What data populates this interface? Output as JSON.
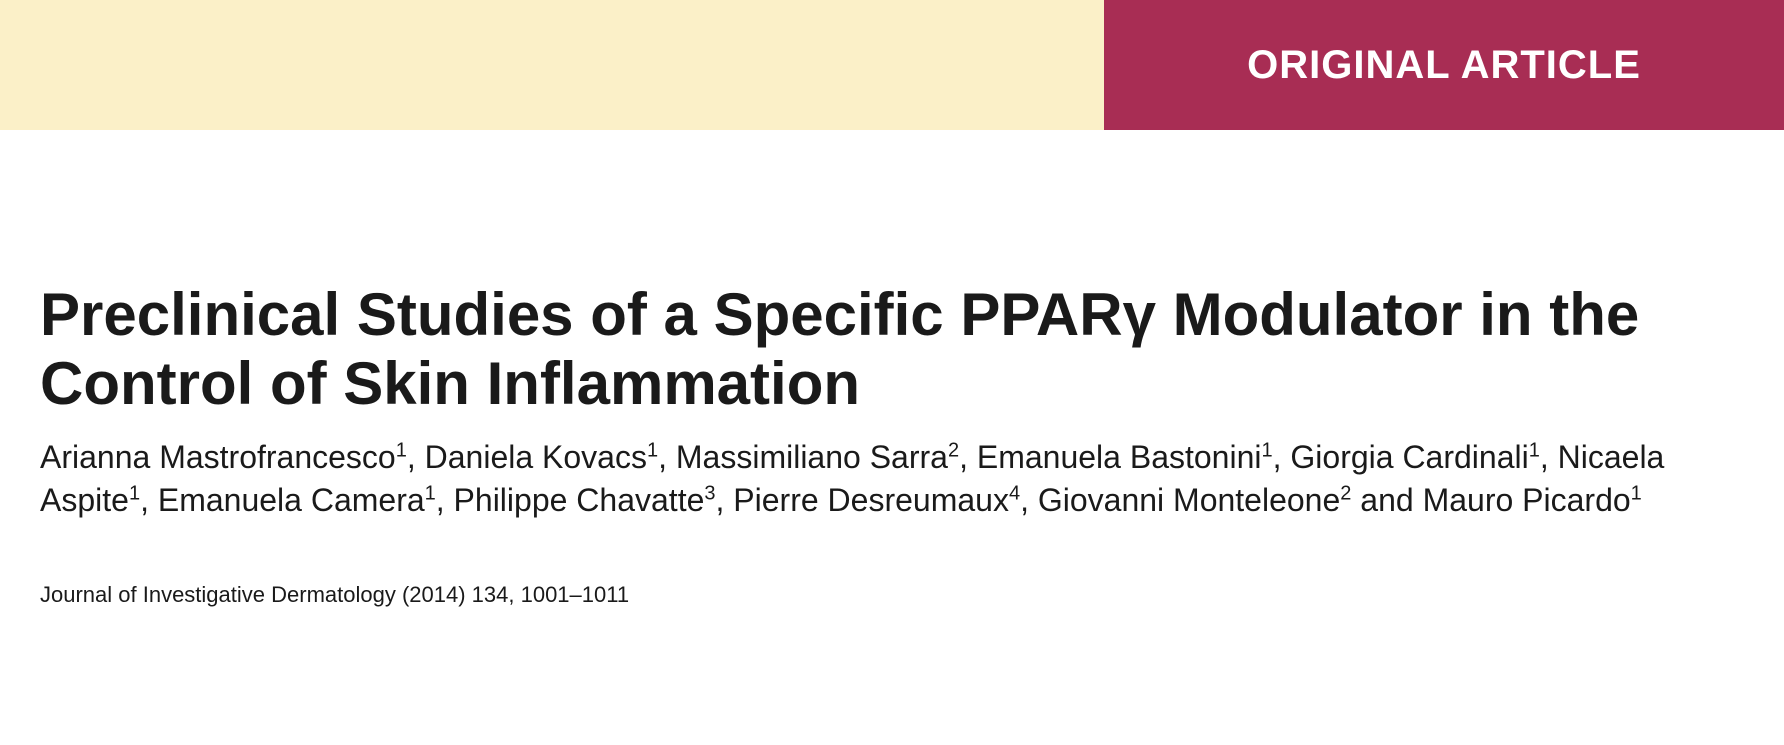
{
  "header": {
    "article_type": "ORIGINAL ARTICLE",
    "left_bg": "#fbf0c8",
    "right_bg": "#a82d54",
    "text_color": "#ffffff"
  },
  "title": "Preclinical Studies of a Specific PPARγ Modulator in the Control of Skin Inflammation",
  "authors": [
    {
      "name": "Arianna Mastrofrancesco",
      "affil": "1"
    },
    {
      "name": "Daniela  Kovacs",
      "affil": "1"
    },
    {
      "name": "Massimiliano Sarra",
      "affil": "2"
    },
    {
      "name": "Emanuela Bastonini",
      "affil": "1"
    },
    {
      "name": "Giorgia Cardinali",
      "affil": "1"
    },
    {
      "name": "Nicaela Aspite",
      "affil": "1"
    },
    {
      "name": "Emanuela Camera",
      "affil": "1"
    },
    {
      "name": "Philippe Chavatte",
      "affil": "3"
    },
    {
      "name": "Pierre Desreumaux",
      "affil": "4"
    },
    {
      "name": "Giovanni Monteleone",
      "affil": "2"
    },
    {
      "name": "Mauro Picardo",
      "affil": "1"
    }
  ],
  "citation": {
    "journal": "Journal of Investigative Dermatology",
    "year": "2014",
    "volume": "134",
    "pages": "1001–1011"
  },
  "colors": {
    "text": "#1a1a1a",
    "background": "#ffffff"
  },
  "typography": {
    "title_fontsize": 60,
    "title_weight": 700,
    "authors_fontsize": 32,
    "citation_fontsize": 22,
    "article_type_fontsize": 40
  }
}
